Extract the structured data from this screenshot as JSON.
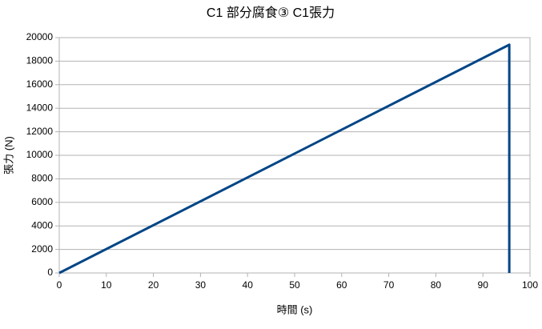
{
  "chart_data": {
    "type": "line",
    "title": "C1 部分腐食③ C1張力",
    "x_label": "時間 (s)",
    "y_label": "張力 (N)",
    "x": [
      0,
      95.6,
      95.6
    ],
    "series": [
      {
        "name": "C1張力",
        "color": "#004586",
        "values": [
          0,
          19400,
          0
        ]
      }
    ],
    "xlim": [
      0,
      100
    ],
    "xticks": [
      0,
      10,
      20,
      30,
      40,
      50,
      60,
      70,
      80,
      90,
      100
    ],
    "ylim": [
      0,
      20000
    ],
    "yticks": [
      0,
      2000,
      4000,
      6000,
      8000,
      10000,
      12000,
      14000,
      16000,
      18000,
      20000
    ],
    "grid": true
  }
}
